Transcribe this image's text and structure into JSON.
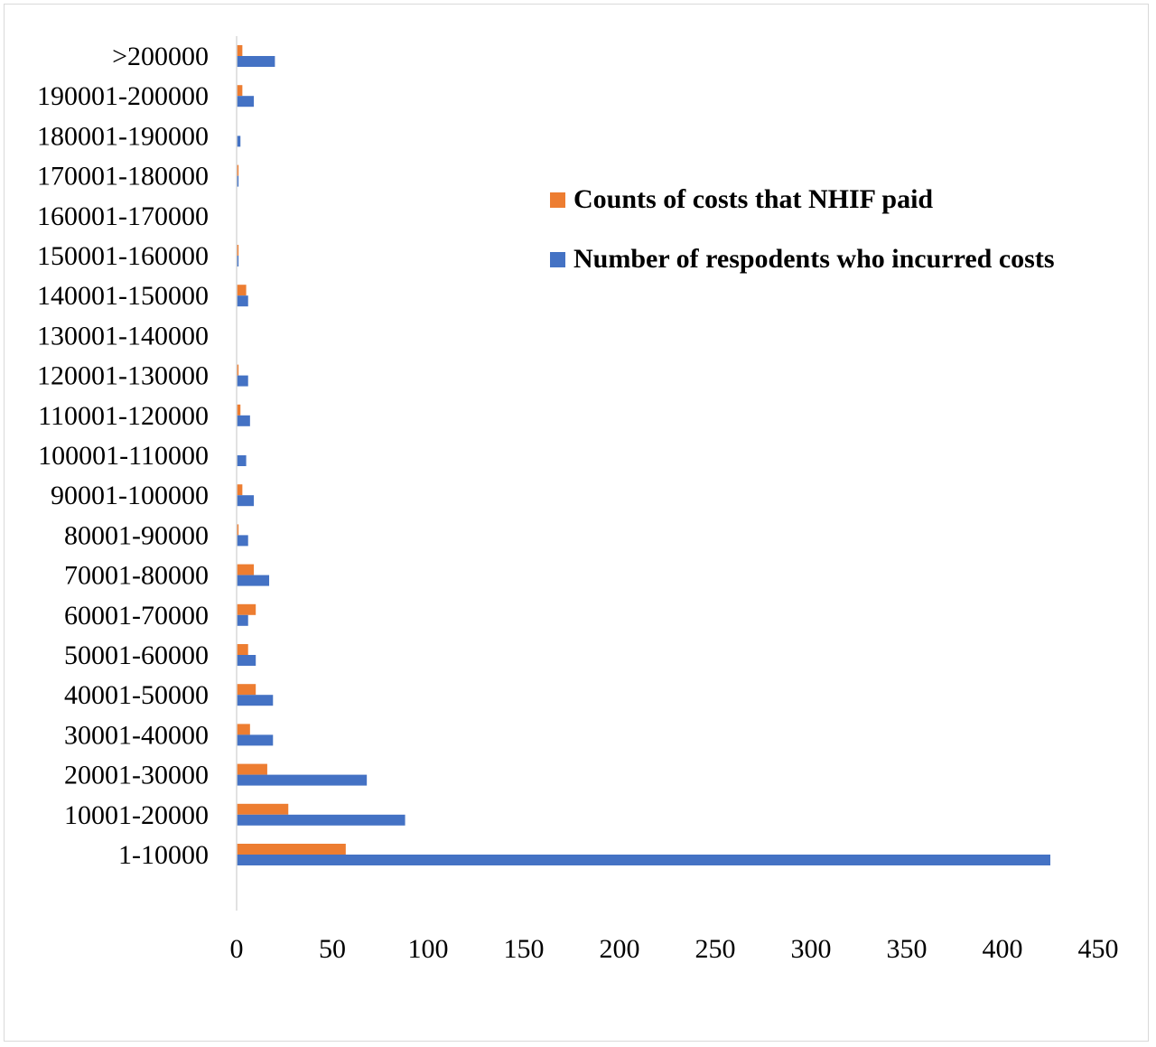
{
  "chart_data": {
    "type": "bar",
    "orientation": "horizontal",
    "categories": [
      "1-10000",
      "10001-20000",
      "20001-30000",
      "30001-40000",
      "40001-50000",
      "50001-60000",
      "60001-70000",
      "70001-80000",
      "80001-90000",
      "90001-100000",
      "100001-110000",
      "110001-120000",
      "120001-130000",
      "130001-140000",
      "140001-150000",
      "150001-160000",
      "160001-170000",
      "170001-180000",
      "180001-190000",
      "190001-200000",
      ">200000"
    ],
    "series": [
      {
        "name": "Counts of costs that NHIF paid",
        "color": "#ED7D31",
        "values": [
          57,
          27,
          16,
          7,
          10,
          6,
          10,
          9,
          1,
          3,
          0,
          2,
          1,
          0,
          5,
          1,
          0,
          1,
          0,
          3,
          3
        ]
      },
      {
        "name": "Number of respodents who incurred costs",
        "color": "#4472C4",
        "values": [
          425,
          88,
          68,
          19,
          19,
          10,
          6,
          17,
          6,
          9,
          5,
          7,
          6,
          0,
          6,
          1,
          0,
          1,
          2,
          9,
          20
        ]
      }
    ],
    "xlim": [
      0,
      450
    ],
    "xticks": [
      "0",
      "50",
      "100",
      "150",
      "200",
      "250",
      "300",
      "350",
      "400",
      "450"
    ],
    "grid": false,
    "legend_position": "right",
    "title": "",
    "xlabel": "",
    "ylabel": ""
  }
}
